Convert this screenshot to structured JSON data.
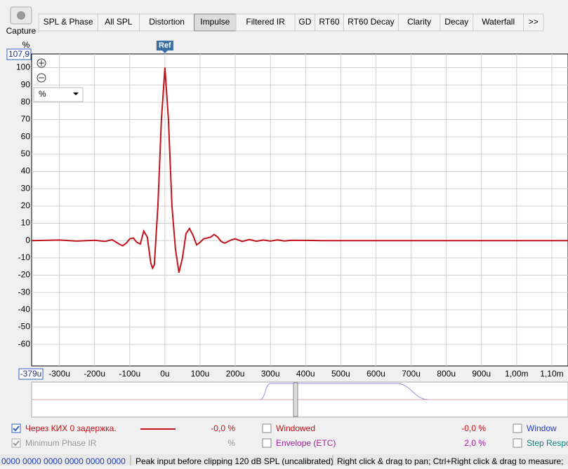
{
  "toolbar": {
    "capture": "Capture",
    "tabs": [
      "SPL & Phase",
      "All SPL",
      "Distortion",
      "Impulse",
      "Filtered IR",
      "GD",
      "RT60",
      "RT60 Decay",
      "Clarity",
      "Decay",
      "Waterfall",
      ">>"
    ]
  },
  "chart_data": {
    "type": "line",
    "y_label": "%",
    "y_top_label": "107,9",
    "x_start_label": "-379u",
    "ref_label": "Ref",
    "unit_select": "%",
    "xlim": [
      -379,
      1146
    ],
    "ylim": [
      -72.5,
      107.9
    ],
    "grid": true,
    "xticks": [
      {
        "value": -300,
        "label": "-300u"
      },
      {
        "value": -200,
        "label": "-200u"
      },
      {
        "value": -100,
        "label": "-100u"
      },
      {
        "value": 0,
        "label": "0u"
      },
      {
        "value": 100,
        "label": "100u"
      },
      {
        "value": 200,
        "label": "200u"
      },
      {
        "value": 300,
        "label": "300u"
      },
      {
        "value": 400,
        "label": "400u"
      },
      {
        "value": 500,
        "label": "500u"
      },
      {
        "value": 600,
        "label": "600u"
      },
      {
        "value": 700,
        "label": "700u"
      },
      {
        "value": 800,
        "label": "800u"
      },
      {
        "value": 900,
        "label": "900u"
      },
      {
        "value": 1000,
        "label": "1,00m"
      },
      {
        "value": 1100,
        "label": "1,10m"
      }
    ],
    "yticks": [
      100,
      90,
      80,
      70,
      60,
      50,
      40,
      30,
      20,
      10,
      0,
      -10,
      -20,
      -30,
      -40,
      -50,
      -60
    ],
    "x": [
      -379,
      -300,
      -250,
      -200,
      -170,
      -150,
      -130,
      -120,
      -110,
      -100,
      -90,
      -80,
      -70,
      -60,
      -50,
      -40,
      -35,
      -30,
      -20,
      -10,
      0,
      10,
      20,
      30,
      40,
      50,
      60,
      70,
      80,
      90,
      100,
      110,
      120,
      130,
      140,
      150,
      160,
      170,
      180,
      190,
      200,
      220,
      240,
      260,
      280,
      300,
      320,
      340,
      360,
      400,
      450,
      500,
      600,
      800,
      1000,
      1146
    ],
    "series": [
      {
        "name": "Через КИХ 0 задержка.",
        "color": "#c0141c",
        "values": [
          0,
          0.3,
          -0.3,
          0.2,
          -0.5,
          0.5,
          -2,
          -3,
          -1.5,
          1,
          1.5,
          -1,
          -2,
          5.5,
          2,
          -13,
          -16,
          -14,
          20,
          70,
          100,
          70,
          20,
          -5,
          -18.5,
          -10,
          4,
          7,
          3,
          -2.5,
          -1,
          1,
          1.5,
          2,
          3.5,
          2,
          -0.5,
          -1.5,
          -0.5,
          0.5,
          1,
          -0.5,
          0.6,
          -0.4,
          0.3,
          -0.3,
          0.4,
          -0.2,
          0.2,
          0.1,
          0,
          0,
          0,
          0,
          0,
          0
        ]
      }
    ]
  },
  "legend": {
    "value_1": "-0,0 %",
    "minimum_phase": "Minimum Phase IR",
    "minimum_phase_value": "%",
    "windowed": "Windowed",
    "windowed_value": "-0,0 %",
    "envelope": "Envelope (ETC)",
    "envelope_value": "2,0 %",
    "window": "Window",
    "step": "Step Respo"
  },
  "status_bar": [
    "0000 0000   0000 0000   0000 0000",
    "Peak input before clipping 120 dB SPL (uncalibrated)",
    "Right click & drag to pan; Ctrl+Right click & drag to measure;"
  ]
}
